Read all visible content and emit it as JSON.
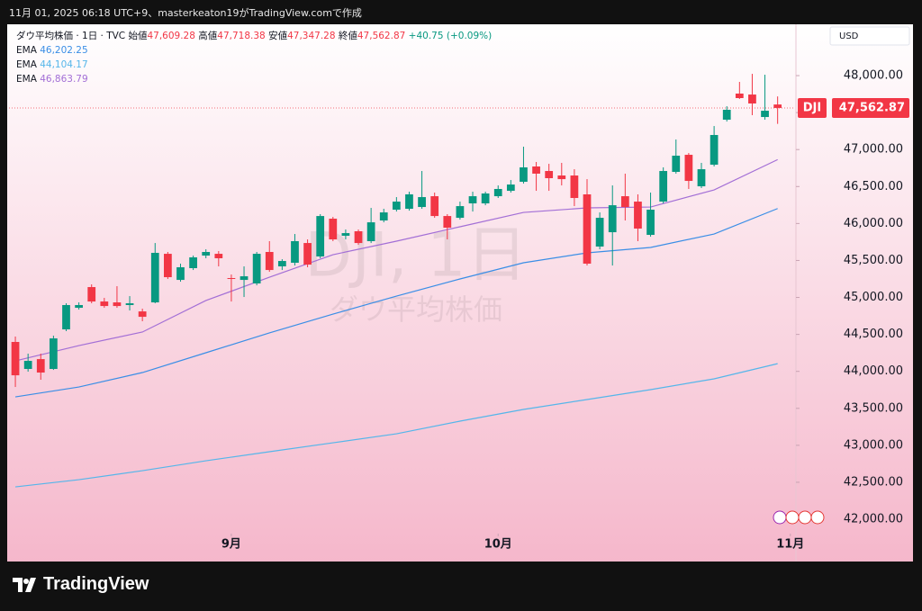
{
  "header": {
    "caption": "11月 01, 2025 06:18 UTC+9、masterkeaton19がTradingView.comで作成",
    "symbol": "ダウ平均株価 · 1日 · TVC",
    "ohlc": [
      {
        "label": "始値",
        "value": "47,609.28"
      },
      {
        "label": "高値",
        "value": "47,718.38"
      },
      {
        "label": "安値",
        "value": "47,347.28"
      },
      {
        "label": "終値",
        "value": "47,562.87"
      }
    ],
    "change": "+40.75 (+0.09%)",
    "currency": "USD"
  },
  "watermark": {
    "symbol": "DJI, 1日",
    "name": "ダウ平均株価"
  },
  "price_tag": {
    "symbol": "DJI"
  },
  "footer": {
    "logo": "TradingView"
  },
  "chart_data": {
    "type": "candlestick",
    "open": [
      44398,
      44033,
      44166,
      44033,
      44568,
      44860,
      45140,
      44945,
      44933,
      44897,
      44811,
      44933,
      45590,
      45237,
      45396,
      45566,
      45590,
      45262,
      45237,
      45189,
      45615,
      45420,
      45469,
      45736,
      45554,
      46065,
      45834,
      45895,
      45761,
      46041,
      46187,
      46199,
      46223,
      46369,
      46101,
      46077,
      46272,
      46272,
      46369,
      46442,
      46564,
      46771,
      46710,
      46649,
      46649,
      46394,
      45688,
      45882,
      46369,
      46296,
      45846,
      46296,
      46698,
      46929,
      46503,
      46795,
      47404,
      47757,
      47744,
      47440,
      47609.28
    ],
    "high": [
      44471,
      44240,
      44240,
      44483,
      44921,
      44933,
      45177,
      44994,
      45152,
      45018,
      44848,
      45736,
      45615,
      45457,
      45566,
      45651,
      45627,
      45310,
      45420,
      45615,
      45761,
      45517,
      45858,
      45785,
      46126,
      46089,
      45919,
      45919,
      46211,
      46199,
      46357,
      46430,
      46710,
      46418,
      46126,
      46296,
      46430,
      46430,
      46515,
      46588,
      47039,
      46832,
      46807,
      46820,
      46734,
      46600,
      46150,
      46515,
      46674,
      46394,
      46418,
      46759,
      47136,
      46953,
      46820,
      47318,
      47586,
      47915,
      48024,
      48012,
      47718.38
    ],
    "low": [
      43789,
      43996,
      43887,
      44020,
      44544,
      44836,
      44921,
      44860,
      44860,
      44824,
      44678,
      44921,
      45250,
      45213,
      45371,
      45530,
      45420,
      44945,
      45006,
      45164,
      45347,
      45371,
      45432,
      45408,
      45530,
      45761,
      45785,
      45712,
      45736,
      46016,
      46162,
      46174,
      46199,
      46077,
      45785,
      46053,
      46162,
      46247,
      46345,
      46418,
      46540,
      46442,
      46442,
      46515,
      46235,
      45432,
      45651,
      45432,
      46041,
      45761,
      45822,
      46272,
      46674,
      46467,
      46479,
      46771,
      47379,
      47684,
      47465,
      47404,
      47347.28
    ],
    "close": [
      43947,
      44142,
      43984,
      44446,
      44897,
      44897,
      44945,
      44884,
      44884,
      44921,
      44738,
      45603,
      45274,
      45408,
      45542,
      45615,
      45530,
      45250,
      45286,
      45590,
      45371,
      45493,
      45761,
      45444,
      46101,
      45785,
      45870,
      45736,
      46016,
      46150,
      46296,
      46394,
      46357,
      46101,
      45943,
      46235,
      46369,
      46406,
      46467,
      46527,
      46759,
      46674,
      46613,
      46600,
      46345,
      45457,
      46077,
      46247,
      46223,
      45931,
      46187,
      46710,
      46917,
      46576,
      46734,
      47197,
      47538,
      47696,
      47623,
      47525,
      47562.87
    ],
    "last_label": "47,562.87",
    "up_color": "#089981",
    "down_color": "#f23645",
    "xlim": [
      -0.5,
      61.3
    ],
    "xticks": [
      {
        "value": 17,
        "label": "9月"
      },
      {
        "value": 38,
        "label": "10月"
      },
      {
        "value": 61,
        "label": "11月"
      }
    ],
    "ylim": [
      41818,
      48694
    ],
    "yticks": [
      {
        "value": 42000,
        "label": "42,000.00"
      },
      {
        "value": 42500,
        "label": "42,500.00"
      },
      {
        "value": 43000,
        "label": "43,000.00"
      },
      {
        "value": 43500,
        "label": "43,500.00"
      },
      {
        "value": 44000,
        "label": "44,000.00"
      },
      {
        "value": 44500,
        "label": "44,500.00"
      },
      {
        "value": 45000,
        "label": "45,000.00"
      },
      {
        "value": 45500,
        "label": "45,500.00"
      },
      {
        "value": 46000,
        "label": "46,000.00"
      },
      {
        "value": 46500,
        "label": "46,500.00"
      },
      {
        "value": 47000,
        "label": "47,000.00"
      },
      {
        "value": 47500,
        "label": "47,500.00"
      },
      {
        "value": 48000,
        "label": "48,000.00"
      }
    ],
    "overlays": [
      {
        "name": "EMA",
        "last_label": "46,202.25",
        "color": "#3a8ee6",
        "x": [
          0,
          5,
          10,
          15,
          20,
          25,
          30,
          35,
          40,
          45,
          50,
          55,
          60
        ],
        "values": [
          43655,
          43789,
          43984,
          44252,
          44520,
          44775,
          45018,
          45250,
          45469,
          45603,
          45676,
          45858,
          46202.25
        ]
      },
      {
        "name": "EMA",
        "last_label": "44,104.17",
        "color": "#55b6ea",
        "x": [
          0,
          5,
          10,
          15,
          20,
          25,
          30,
          35,
          40,
          45,
          50,
          55,
          60
        ],
        "values": [
          42438,
          42535,
          42657,
          42791,
          42913,
          43034,
          43156,
          43327,
          43485,
          43619,
          43753,
          43899,
          44104.17
        ]
      },
      {
        "name": "EMA",
        "last_label": "46,863.79",
        "color": "#a36fd6",
        "x": [
          0,
          5,
          10,
          15,
          20,
          25,
          30,
          35,
          40,
          45,
          50,
          55,
          60
        ],
        "values": [
          44142,
          44349,
          44532,
          44958,
          45274,
          45578,
          45761,
          45956,
          46150,
          46211,
          46223,
          46454,
          46863.79
        ]
      }
    ]
  }
}
